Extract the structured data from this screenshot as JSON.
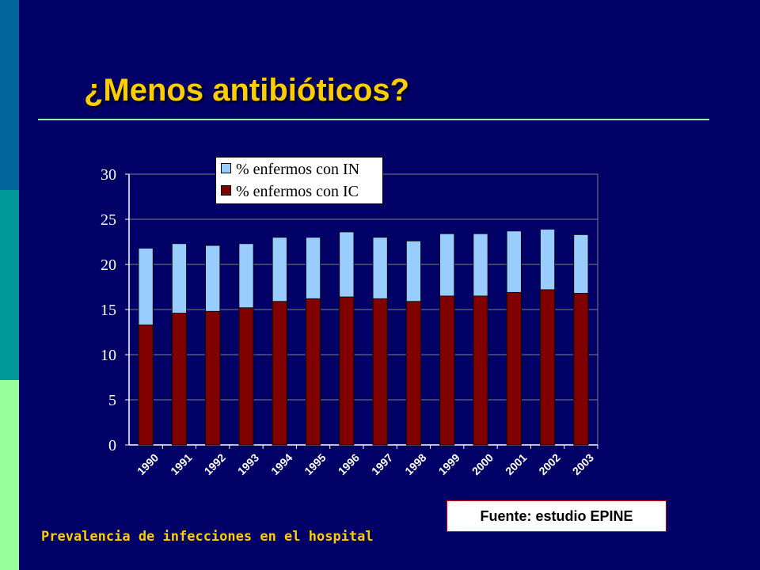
{
  "slide": {
    "title": "¿Menos antibióticos?",
    "source": "Fuente: estudio EPINE",
    "caption": "Prevalencia de infecciones en el hospital"
  },
  "colors": {
    "background": "#000066",
    "title": "#ffcc00",
    "rule": "#99ff99",
    "series_in": "#99ccff",
    "series_ic": "#800000"
  },
  "chart_data": {
    "type": "bar",
    "stacked": false,
    "overlapping": true,
    "categories": [
      "1990",
      "1991",
      "1992",
      "1993",
      "1994",
      "1995",
      "1996",
      "1997",
      "1998",
      "1999",
      "2000",
      "2001",
      "2002",
      "2003"
    ],
    "series": [
      {
        "name": "% enfermos con IN",
        "color": "#99ccff",
        "values": [
          21.8,
          22.3,
          22.1,
          22.3,
          23.0,
          23.0,
          23.6,
          23.0,
          22.6,
          23.4,
          23.4,
          23.7,
          23.9,
          23.3
        ]
      },
      {
        "name": "% enfermos con IC",
        "color": "#800000",
        "values": [
          13.3,
          14.6,
          14.8,
          15.2,
          15.9,
          16.2,
          16.4,
          16.2,
          15.9,
          16.5,
          16.5,
          16.9,
          17.2,
          16.8
        ]
      }
    ],
    "ylim": [
      0,
      30
    ],
    "yticks": [
      0,
      5,
      10,
      15,
      20,
      25,
      30
    ],
    "grid": true,
    "legend": "top-left",
    "title": "",
    "xlabel": "",
    "ylabel": ""
  }
}
